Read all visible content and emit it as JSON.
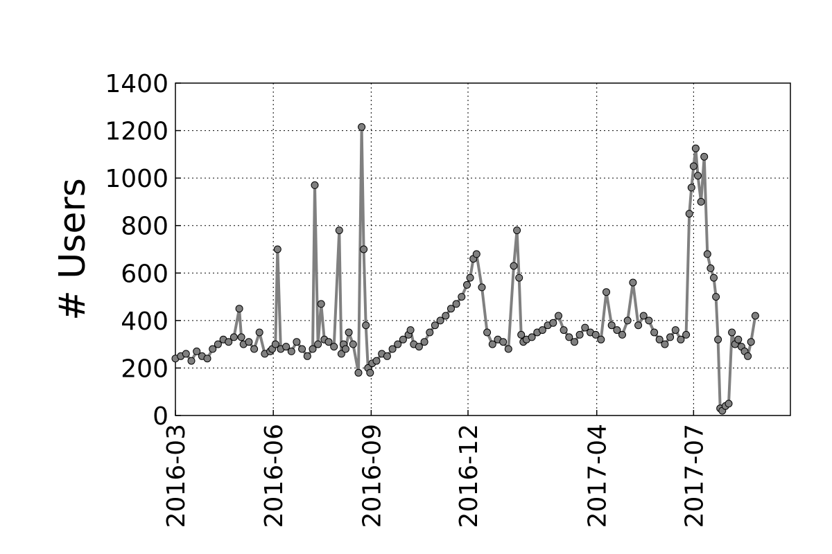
{
  "chart_data": {
    "type": "line",
    "title": "",
    "xlabel": "",
    "ylabel": "# Users",
    "x_range": [
      "2016-03-01",
      "2017-09-30"
    ],
    "ylim": [
      0,
      1400
    ],
    "grid": true,
    "x_tick_labels": [
      "2016-03",
      "2016-06",
      "2016-09",
      "2016-12",
      "2017-04",
      "2017-07"
    ],
    "y_tick_labels": [
      "0",
      "200",
      "400",
      "600",
      "800",
      "1000",
      "1200",
      "1400"
    ],
    "line_color": "#808080",
    "marker_color": "#808080",
    "series": [
      {
        "x": [
          "2016-03-01",
          "2016-03-06",
          "2016-03-11",
          "2016-03-16",
          "2016-03-21",
          "2016-03-26",
          "2016-03-31",
          "2016-04-05",
          "2016-04-10",
          "2016-04-15",
          "2016-04-20",
          "2016-04-25",
          "2016-04-30",
          "2016-05-02",
          "2016-05-04",
          "2016-05-09",
          "2016-05-14",
          "2016-05-19",
          "2016-05-24",
          "2016-05-29",
          "2016-05-31",
          "2016-06-03",
          "2016-06-05",
          "2016-06-08",
          "2016-06-13",
          "2016-06-18",
          "2016-06-23",
          "2016-06-28",
          "2016-07-03",
          "2016-07-08",
          "2016-07-10",
          "2016-07-13",
          "2016-07-16",
          "2016-07-19",
          "2016-07-23",
          "2016-07-28",
          "2016-08-02",
          "2016-08-04",
          "2016-08-06",
          "2016-08-08",
          "2016-08-11",
          "2016-08-15",
          "2016-08-20",
          "2016-08-23",
          "2016-08-25",
          "2016-08-27",
          "2016-08-29",
          "2016-08-31",
          "2016-09-02",
          "2016-09-06",
          "2016-09-11",
          "2016-09-16",
          "2016-09-21",
          "2016-09-26",
          "2016-10-01",
          "2016-10-06",
          "2016-10-08",
          "2016-10-11",
          "2016-10-16",
          "2016-10-21",
          "2016-10-26",
          "2016-10-31",
          "2016-11-05",
          "2016-11-10",
          "2016-11-15",
          "2016-11-20",
          "2016-11-25",
          "2016-11-30",
          "2016-12-03",
          "2016-12-06",
          "2016-12-09",
          "2016-12-14",
          "2016-12-19",
          "2016-12-24",
          "2016-12-29",
          "2017-01-03",
          "2017-01-08",
          "2017-01-13",
          "2017-01-16",
          "2017-01-18",
          "2017-01-20",
          "2017-01-22",
          "2017-01-25",
          "2017-01-30",
          "2017-02-04",
          "2017-02-09",
          "2017-02-14",
          "2017-02-19",
          "2017-02-24",
          "2017-03-01",
          "2017-03-06",
          "2017-03-11",
          "2017-03-16",
          "2017-03-21",
          "2017-03-26",
          "2017-03-31",
          "2017-04-05",
          "2017-04-10",
          "2017-04-15",
          "2017-04-20",
          "2017-04-25",
          "2017-04-30",
          "2017-05-05",
          "2017-05-10",
          "2017-05-15",
          "2017-05-20",
          "2017-05-25",
          "2017-05-30",
          "2017-06-04",
          "2017-06-09",
          "2017-06-14",
          "2017-06-19",
          "2017-06-24",
          "2017-06-27",
          "2017-06-29",
          "2017-07-01",
          "2017-07-03",
          "2017-07-05",
          "2017-07-08",
          "2017-07-11",
          "2017-07-14",
          "2017-07-17",
          "2017-07-20",
          "2017-07-22",
          "2017-07-24",
          "2017-07-26",
          "2017-07-28",
          "2017-07-31",
          "2017-08-03",
          "2017-08-06",
          "2017-08-09",
          "2017-08-12",
          "2017-08-15",
          "2017-08-18",
          "2017-08-21",
          "2017-08-24",
          "2017-08-28"
        ],
        "y": [
          240,
          250,
          260,
          230,
          270,
          250,
          240,
          280,
          300,
          320,
          310,
          330,
          450,
          330,
          300,
          310,
          280,
          350,
          260,
          270,
          280,
          300,
          700,
          280,
          290,
          270,
          310,
          280,
          250,
          280,
          970,
          300,
          470,
          320,
          310,
          290,
          780,
          260,
          300,
          280,
          350,
          300,
          180,
          1215,
          700,
          380,
          200,
          180,
          220,
          230,
          260,
          250,
          280,
          300,
          320,
          340,
          360,
          300,
          290,
          310,
          350,
          380,
          400,
          420,
          450,
          470,
          500,
          550,
          580,
          660,
          680,
          540,
          350,
          300,
          320,
          310,
          280,
          630,
          780,
          580,
          340,
          310,
          320,
          330,
          350,
          360,
          380,
          390,
          420,
          360,
          330,
          310,
          340,
          370,
          350,
          340,
          320,
          520,
          380,
          360,
          340,
          400,
          560,
          380,
          420,
          400,
          350,
          320,
          300,
          330,
          360,
          320,
          340,
          850,
          960,
          1050,
          1125,
          1010,
          900,
          1090,
          680,
          620,
          580,
          500,
          320,
          30,
          20,
          40,
          50,
          350,
          300,
          320,
          290,
          270,
          250,
          310,
          420
        ]
      }
    ]
  }
}
